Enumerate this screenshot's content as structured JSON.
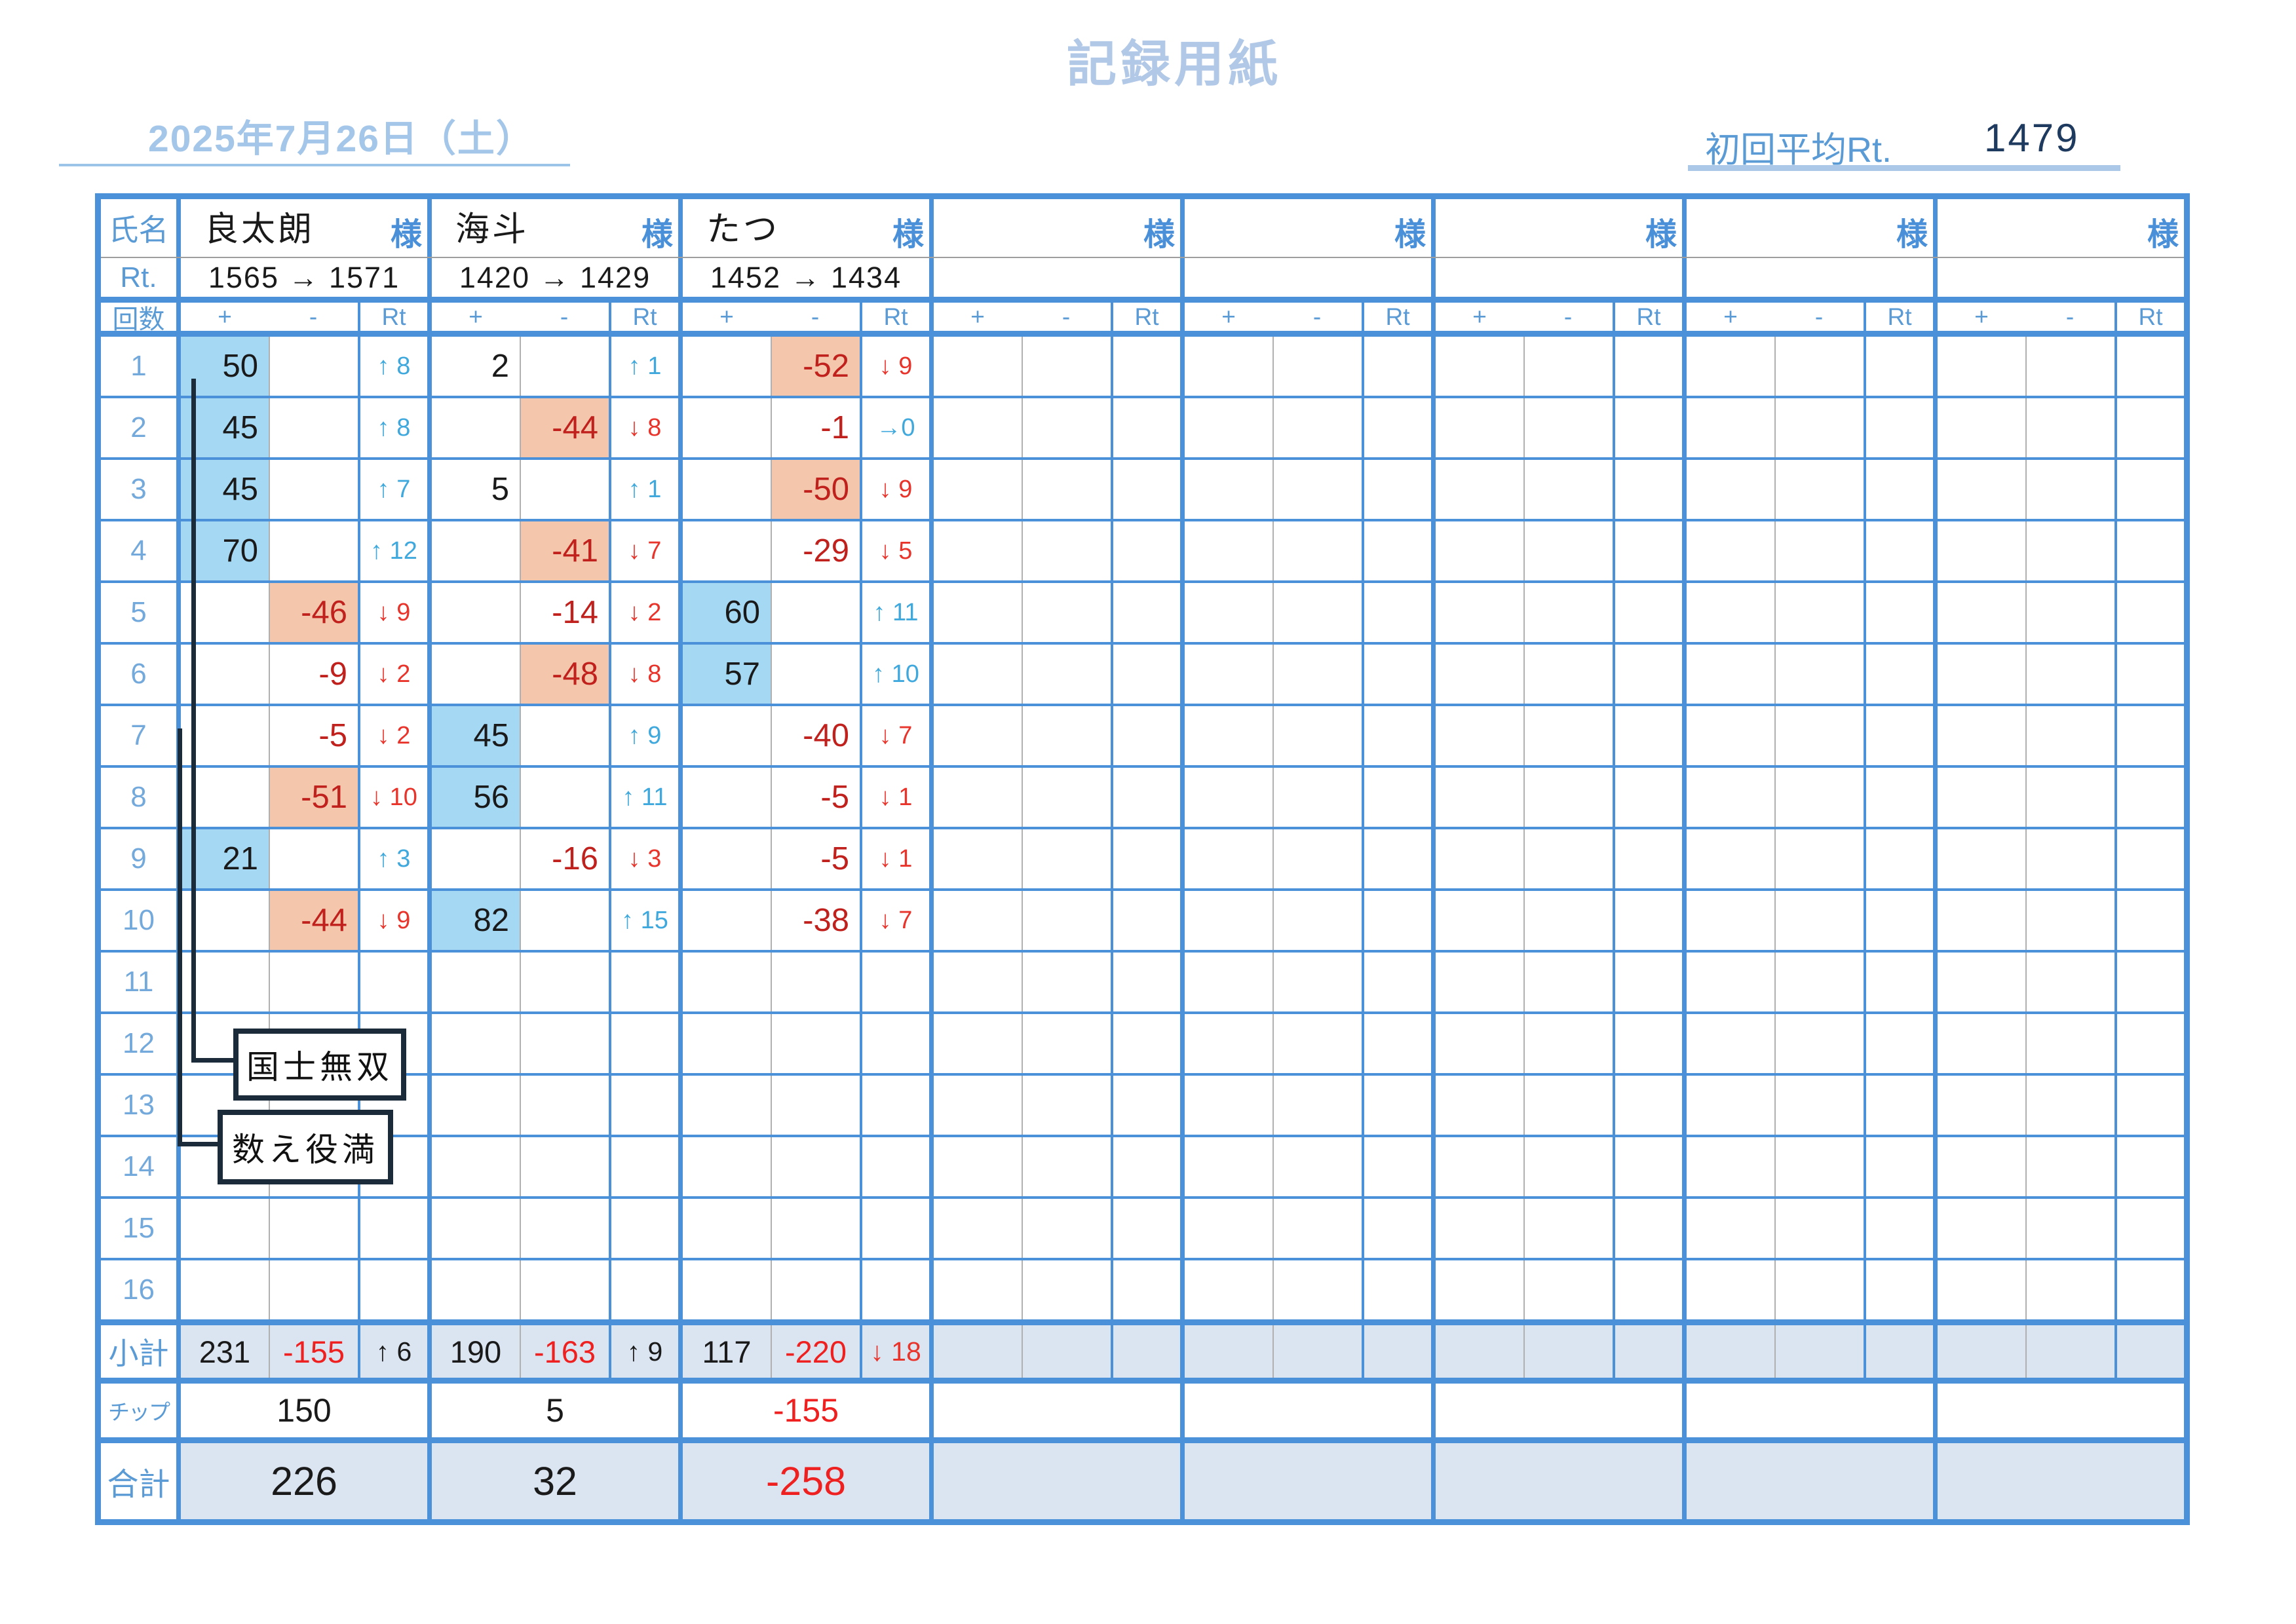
{
  "page": {
    "title": "記録用紙",
    "date": "2025年7月26日（土）",
    "avg_label": "初回平均Rt.",
    "avg_value": "1479"
  },
  "colors": {
    "grid_blue": "#4a91d9",
    "label_blue": "#5b9bd5",
    "pale_blue_band": "#dbe5f1",
    "highlight_win": "#a5d8f3",
    "highlight_lose": "#f4c7ac",
    "negative_dark_red": "#c0211d",
    "bright_red": "#ee2020",
    "arrow_blue": "#3fa8dc",
    "navy_value": "#1e3a5e",
    "callout_dark": "#1c2b3a"
  },
  "labels": {
    "name": "氏名",
    "rt": "Rt.",
    "round": "回数",
    "plus": "+",
    "minus": "-",
    "rt_col": "Rt",
    "subtotal": "小計",
    "chip": "チップ",
    "total": "合計",
    "sama": "様"
  },
  "players": [
    {
      "name": "良太朗",
      "rt_change": "1565 → 1571",
      "subtotal": {
        "p": "231",
        "m": "-155",
        "rt": "↑ 6",
        "c": "k"
      },
      "chip": "150",
      "total": "226"
    },
    {
      "name": "海斗",
      "rt_change": "1420 → 1429",
      "subtotal": {
        "p": "190",
        "m": "-163",
        "rt": "↑ 9",
        "c": "k"
      },
      "chip": "5",
      "total": "32"
    },
    {
      "name": "たつ",
      "rt_change": "1452 → 1434",
      "subtotal": {
        "p": "117",
        "m": "-220",
        "rt": "↓ 18",
        "c": "down"
      },
      "chip": "-155",
      "total": "-258"
    },
    {
      "name": "",
      "rt_change": "",
      "subtotal": {
        "p": "",
        "m": "",
        "rt": "",
        "c": ""
      },
      "chip": "",
      "total": ""
    },
    {
      "name": "",
      "rt_change": "",
      "subtotal": {
        "p": "",
        "m": "",
        "rt": "",
        "c": ""
      },
      "chip": "",
      "total": ""
    },
    {
      "name": "",
      "rt_change": "",
      "subtotal": {
        "p": "",
        "m": "",
        "rt": "",
        "c": ""
      },
      "chip": "",
      "total": ""
    },
    {
      "name": "",
      "rt_change": "",
      "subtotal": {
        "p": "",
        "m": "",
        "rt": "",
        "c": ""
      },
      "chip": "",
      "total": ""
    },
    {
      "name": "",
      "rt_change": "",
      "subtotal": {
        "p": "",
        "m": "",
        "rt": "",
        "c": ""
      },
      "chip": "",
      "total": ""
    }
  ],
  "rounds": [
    {
      "no": "1",
      "cells": [
        {
          "p": "50",
          "hp": true,
          "rt": "↑ 8",
          "c": "up"
        },
        {
          "p": "2",
          "rt": "↑ 1",
          "c": "up"
        },
        {
          "m": "-52",
          "hm": true,
          "rt": "↓ 9",
          "c": "down"
        },
        null,
        null,
        null,
        null,
        null
      ]
    },
    {
      "no": "2",
      "cells": [
        {
          "p": "45",
          "hp": true,
          "rt": "↑ 8",
          "c": "up"
        },
        {
          "m": "-44",
          "hm": true,
          "rt": "↓ 8",
          "c": "down"
        },
        {
          "m": "-1",
          "rt": "→0",
          "c": "up"
        },
        null,
        null,
        null,
        null,
        null
      ]
    },
    {
      "no": "3",
      "cells": [
        {
          "p": "45",
          "hp": true,
          "rt": "↑ 7",
          "c": "up"
        },
        {
          "p": "5",
          "rt": "↑ 1",
          "c": "up"
        },
        {
          "m": "-50",
          "hm": true,
          "rt": "↓ 9",
          "c": "down"
        },
        null,
        null,
        null,
        null,
        null
      ]
    },
    {
      "no": "4",
      "cells": [
        {
          "p": "70",
          "hp": true,
          "rt": "↑ 12",
          "c": "up"
        },
        {
          "m": "-41",
          "hm": true,
          "rt": "↓ 7",
          "c": "down"
        },
        {
          "m": "-29",
          "rt": "↓ 5",
          "c": "down"
        },
        null,
        null,
        null,
        null,
        null
      ]
    },
    {
      "no": "5",
      "cells": [
        {
          "m": "-46",
          "hm": true,
          "rt": "↓ 9",
          "c": "down"
        },
        {
          "m": "-14",
          "rt": "↓ 2",
          "c": "down"
        },
        {
          "p": "60",
          "hp": true,
          "rt": "↑ 11",
          "c": "up"
        },
        null,
        null,
        null,
        null,
        null
      ]
    },
    {
      "no": "6",
      "cells": [
        {
          "m": "-9",
          "rt": "↓ 2",
          "c": "down"
        },
        {
          "m": "-48",
          "hm": true,
          "rt": "↓ 8",
          "c": "down"
        },
        {
          "p": "57",
          "hp": true,
          "rt": "↑ 10",
          "c": "up"
        },
        null,
        null,
        null,
        null,
        null
      ]
    },
    {
      "no": "7",
      "cells": [
        {
          "m": "-5",
          "rt": "↓ 2",
          "c": "down"
        },
        {
          "p": "45",
          "hp": true,
          "rt": "↑ 9",
          "c": "up"
        },
        {
          "m": "-40",
          "rt": "↓ 7",
          "c": "down"
        },
        null,
        null,
        null,
        null,
        null
      ]
    },
    {
      "no": "8",
      "cells": [
        {
          "m": "-51",
          "hm": true,
          "rt": "↓ 10",
          "c": "down"
        },
        {
          "p": "56",
          "hp": true,
          "rt": "↑ 11",
          "c": "up"
        },
        {
          "m": "-5",
          "rt": "↓ 1",
          "c": "down"
        },
        null,
        null,
        null,
        null,
        null
      ]
    },
    {
      "no": "9",
      "cells": [
        {
          "p": "21",
          "hp": true,
          "rt": "↑ 3",
          "c": "up"
        },
        {
          "m": "-16",
          "rt": "↓ 3",
          "c": "down"
        },
        {
          "m": "-5",
          "rt": "↓ 1",
          "c": "down"
        },
        null,
        null,
        null,
        null,
        null
      ]
    },
    {
      "no": "10",
      "cells": [
        {
          "m": "-44",
          "hm": true,
          "rt": "↓ 9",
          "c": "down"
        },
        {
          "p": "82",
          "hp": true,
          "rt": "↑ 15",
          "c": "up"
        },
        {
          "m": "-38",
          "rt": "↓ 7",
          "c": "down"
        },
        null,
        null,
        null,
        null,
        null
      ]
    },
    {
      "no": "11",
      "cells": [
        null,
        null,
        null,
        null,
        null,
        null,
        null,
        null
      ]
    },
    {
      "no": "12",
      "cells": [
        null,
        null,
        null,
        null,
        null,
        null,
        null,
        null
      ]
    },
    {
      "no": "13",
      "cells": [
        null,
        null,
        null,
        null,
        null,
        null,
        null,
        null
      ]
    },
    {
      "no": "14",
      "cells": [
        null,
        null,
        null,
        null,
        null,
        null,
        null,
        null
      ]
    },
    {
      "no": "15",
      "cells": [
        null,
        null,
        null,
        null,
        null,
        null,
        null,
        null
      ]
    },
    {
      "no": "16",
      "cells": [
        null,
        null,
        null,
        null,
        null,
        null,
        null,
        null
      ]
    }
  ],
  "callouts": [
    {
      "text": "国士無双"
    },
    {
      "text": "数え役満"
    }
  ]
}
